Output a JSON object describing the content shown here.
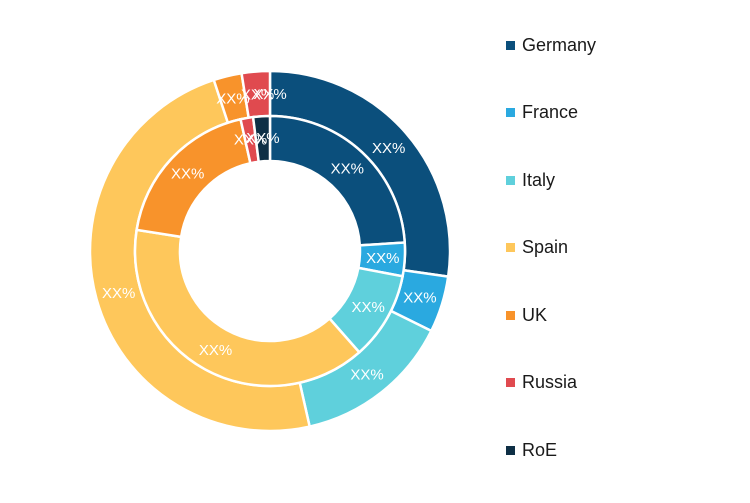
{
  "chart_data": {
    "type": "pie",
    "subtype": "nested-donut",
    "categories": [
      "Germany",
      "France",
      "Italy",
      "Spain",
      "UK",
      "Russia",
      "RoE"
    ],
    "colors": [
      "#0b4f7c",
      "#2aa9e0",
      "#5fd0dc",
      "#fec75b",
      "#f8932b",
      "#e04a4f",
      "#0e2f45"
    ],
    "series": [
      {
        "ring": "outer",
        "values": [
          27,
          5,
          14,
          48,
          2.5,
          2.5,
          0
        ],
        "labels": [
          "XX%",
          "XX%",
          "XX%",
          "XX%",
          "XX%",
          "XX%",
          "XX%"
        ]
      },
      {
        "ring": "inner",
        "values": [
          24,
          4,
          10.5,
          39,
          19,
          1.5,
          2
        ],
        "labels": [
          "XX%",
          "XX%",
          "XX%",
          "XX%",
          "XX%",
          "XX%",
          "XX%"
        ]
      }
    ],
    "legend_position": "right"
  }
}
